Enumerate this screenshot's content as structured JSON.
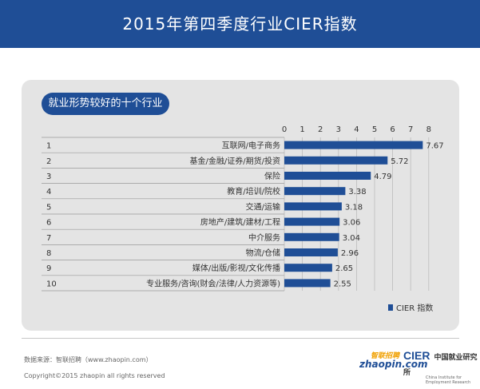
{
  "header": {
    "title": "2015年第四季度行业CIER指数"
  },
  "section_label": "就业形势较好的十个行业",
  "chart_data": {
    "type": "bar",
    "orientation": "horizontal",
    "xlim": [
      0,
      8
    ],
    "x_ticks": [
      "0",
      "1",
      "2",
      "3",
      "4",
      "5",
      "6",
      "7",
      "8"
    ],
    "ranks": [
      "1",
      "2",
      "3",
      "4",
      "5",
      "6",
      "7",
      "8",
      "9",
      "10"
    ],
    "categories": [
      "互联网/电子商务",
      "基金/金融/证券/期货/投资",
      "保险",
      "教育/培训/院校",
      "交通/运输",
      "房地产/建筑/建材/工程",
      "中介服务",
      "物流/仓储",
      "媒体/出版/影视/文化传播",
      "专业服务/咨询(财会/法律/人力资源等)"
    ],
    "series": [
      {
        "name": "CIER 指数",
        "values": [
          7.67,
          5.72,
          4.79,
          3.38,
          3.18,
          3.06,
          3.04,
          2.96,
          2.65,
          2.55
        ]
      }
    ],
    "value_labels": [
      "7.67",
      "5.72",
      "4.79",
      "3.38",
      "3.18",
      "3.06",
      "3.04",
      "2.96",
      "2.65",
      "2.55"
    ],
    "legend_position": "bottom-right",
    "bar_color": "#1f4e96"
  },
  "footer": {
    "source": "数据来源：智联招聘（www.zhaopin.com）",
    "copyright": "Copyright©2015 zhaopin all rights reserved",
    "logo_zhaopin_top": "智联招聘",
    "logo_zhaopin_bottom": "zhaopin.com",
    "logo_cier": "CIER",
    "logo_cier_name": "中国就业研究所",
    "logo_cier_sub": "China Institute for Employment Research"
  }
}
